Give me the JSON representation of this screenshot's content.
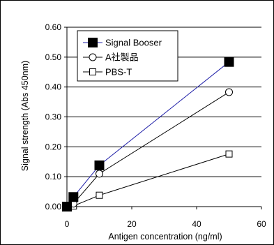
{
  "chart_data": {
    "type": "line",
    "xlabel": "Antigen concentration (ng/ml)",
    "ylabel": "Signal strength (Abs 450nm)",
    "xlim": [
      0,
      60
    ],
    "ylim": [
      0,
      0.6
    ],
    "x_ticks": [
      "0",
      "20",
      "40",
      "60"
    ],
    "y_ticks": [
      "0.00",
      "0.10",
      "0.20",
      "0.30",
      "0.40",
      "0.50",
      "0.60"
    ],
    "grid": "horizontal",
    "legend_position": "top-left",
    "series": [
      {
        "name": "Signal Booser",
        "marker": "filled-square",
        "color": "#1f1fa8",
        "x": [
          0,
          2,
          10,
          50
        ],
        "y": [
          0.0,
          0.032,
          0.138,
          0.484
        ]
      },
      {
        "name": "A社製品",
        "marker": "open-circle",
        "color": "#000000",
        "x": [
          0,
          2,
          10,
          50
        ],
        "y": [
          0.0,
          0.01,
          0.11,
          0.383
        ]
      },
      {
        "name": "PBS-T",
        "marker": "open-square",
        "color": "#000000",
        "x": [
          0,
          2,
          10,
          50
        ],
        "y": [
          0.0,
          0.002,
          0.038,
          0.176
        ]
      }
    ]
  }
}
